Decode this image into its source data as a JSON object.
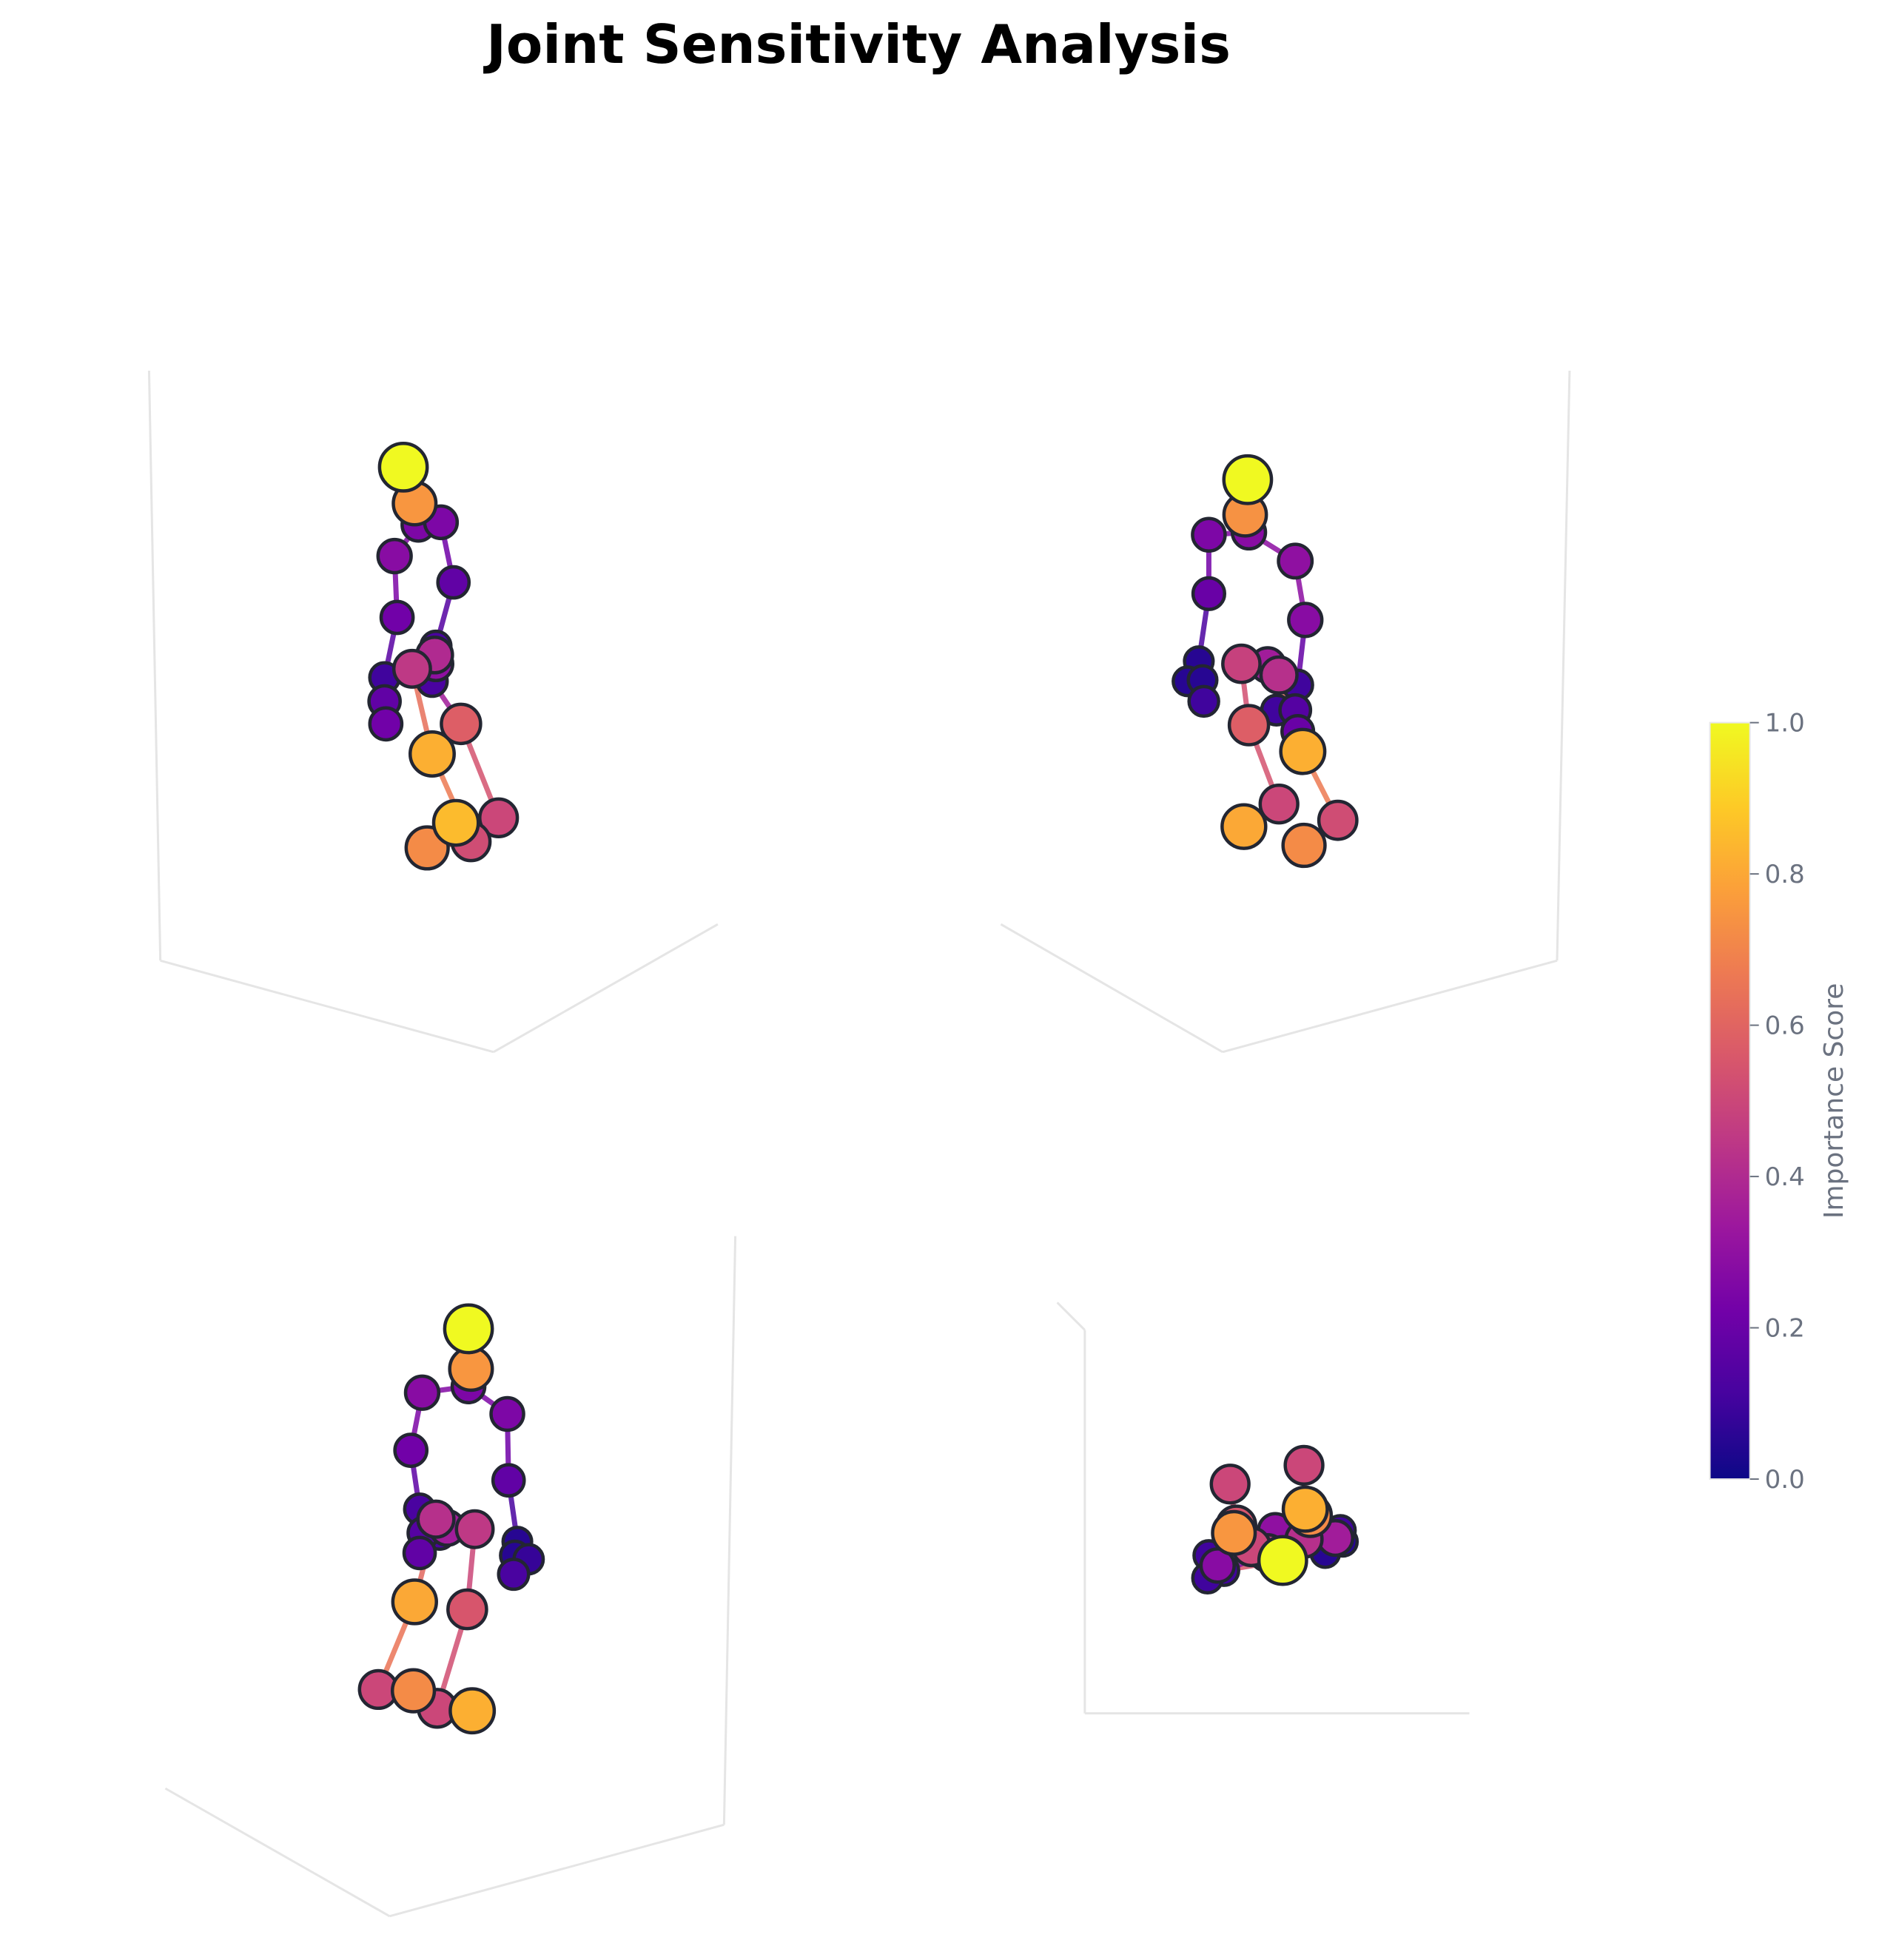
{
  "chart_data": {
    "type": "scatter",
    "title": "Joint Sensitivity Analysis",
    "description_of_encoding": "",
    "colorscale": [
      "#0d0887",
      "#46039f",
      "#7201a8",
      "#9c179e",
      "#bd3786",
      "#d8576b",
      "#ed7953",
      "#fb9f3a",
      "#fdca26",
      "#f0f921"
    ],
    "colorbar": {
      "label": "Importance Score",
      "range": [
        0.0,
        1.0
      ],
      "ticks": [
        "0.0",
        "0.2",
        "0.4",
        "0.6",
        "0.8",
        "1.0"
      ]
    },
    "panels": [
      {
        "name": "",
        "joints": [
          {
            "u": 322,
            "v": 373,
            "score": 1.0
          },
          {
            "u": 331,
            "v": 402,
            "score": 0.75
          },
          {
            "u": 334,
            "v": 419,
            "score": 0.25
          },
          {
            "u": 352,
            "v": 417,
            "score": 0.25
          },
          {
            "u": 315,
            "v": 444,
            "score": 0.28
          },
          {
            "u": 362,
            "v": 465,
            "score": 0.18
          },
          {
            "u": 317,
            "v": 493,
            "score": 0.22
          },
          {
            "u": 348,
            "v": 516,
            "score": 0.12
          },
          {
            "u": 347,
            "v": 523,
            "score": 0.4
          },
          {
            "u": 348,
            "v": 530,
            "score": 0.3
          },
          {
            "u": 329,
            "v": 534,
            "score": 0.45
          },
          {
            "u": 345,
            "v": 544,
            "score": 0.12
          },
          {
            "u": 307,
            "v": 541,
            "score": 0.1
          },
          {
            "u": 307,
            "v": 560,
            "score": 0.18
          },
          {
            "u": 308,
            "v": 578,
            "score": 0.22
          },
          {
            "u": 368,
            "v": 578,
            "score": 0.58
          },
          {
            "u": 345,
            "v": 602,
            "score": 0.82
          },
          {
            "u": 398,
            "v": 653,
            "score": 0.5
          },
          {
            "u": 364,
            "v": 657,
            "score": 0.85
          },
          {
            "u": 376,
            "v": 672,
            "score": 0.52
          },
          {
            "u": 341,
            "v": 677,
            "score": 0.72
          }
        ]
      },
      {
        "name": "",
        "joints": [
          {
            "u": 996,
            "v": 383,
            "score": 1.0
          },
          {
            "u": 994,
            "v": 411,
            "score": 0.74
          },
          {
            "u": 997,
            "v": 425,
            "score": 0.28
          },
          {
            "u": 965,
            "v": 427,
            "score": 0.25
          },
          {
            "u": 1034,
            "v": 448,
            "score": 0.3
          },
          {
            "u": 965,
            "v": 474,
            "score": 0.2
          },
          {
            "u": 1042,
            "v": 495,
            "score": 0.28
          },
          {
            "u": 991,
            "v": 530,
            "score": 0.48
          },
          {
            "u": 1012,
            "v": 531,
            "score": 0.35
          },
          {
            "u": 1021,
            "v": 539,
            "score": 0.42
          },
          {
            "u": 957,
            "v": 528,
            "score": 0.05
          },
          {
            "u": 948,
            "v": 544,
            "score": 0.05
          },
          {
            "u": 960,
            "v": 543,
            "score": 0.05
          },
          {
            "u": 961,
            "v": 560,
            "score": 0.1
          },
          {
            "u": 1036,
            "v": 547,
            "score": 0.1
          },
          {
            "u": 1019,
            "v": 567,
            "score": 0.1
          },
          {
            "u": 1034,
            "v": 567,
            "score": 0.15
          },
          {
            "u": 997,
            "v": 579,
            "score": 0.58
          },
          {
            "u": 1036,
            "v": 584,
            "score": 0.2
          },
          {
            "u": 1040,
            "v": 600,
            "score": 0.82
          },
          {
            "u": 1021,
            "v": 642,
            "score": 0.5
          },
          {
            "u": 1068,
            "v": 655,
            "score": 0.52
          },
          {
            "u": 993,
            "v": 660,
            "score": 0.8
          },
          {
            "u": 1041,
            "v": 675,
            "score": 0.72
          }
        ]
      },
      {
        "name": "",
        "joints": [
          {
            "u": 374,
            "v": 1061,
            "score": 1.0
          },
          {
            "u": 376,
            "v": 1093,
            "score": 0.75
          },
          {
            "u": 374,
            "v": 1107,
            "score": 0.25
          },
          {
            "u": 337,
            "v": 1112,
            "score": 0.28
          },
          {
            "u": 405,
            "v": 1129,
            "score": 0.25
          },
          {
            "u": 328,
            "v": 1158,
            "score": 0.22
          },
          {
            "u": 406,
            "v": 1182,
            "score": 0.18
          },
          {
            "u": 335,
            "v": 1205,
            "score": 0.12
          },
          {
            "u": 348,
            "v": 1213,
            "score": 0.42
          },
          {
            "u": 357,
            "v": 1220,
            "score": 0.35
          },
          {
            "u": 379,
            "v": 1221,
            "score": 0.45
          },
          {
            "u": 338,
            "v": 1224,
            "score": 0.15
          },
          {
            "u": 351,
            "v": 1225,
            "score": 0.12
          },
          {
            "u": 413,
            "v": 1231,
            "score": 0.05
          },
          {
            "u": 335,
            "v": 1240,
            "score": 0.18
          },
          {
            "u": 411,
            "v": 1242,
            "score": 0.05
          },
          {
            "u": 422,
            "v": 1245,
            "score": 0.08
          },
          {
            "u": 410,
            "v": 1257,
            "score": 0.12
          },
          {
            "u": 331,
            "v": 1279,
            "score": 0.8
          },
          {
            "u": 373,
            "v": 1285,
            "score": 0.55
          },
          {
            "u": 302,
            "v": 1349,
            "score": 0.5
          },
          {
            "u": 330,
            "v": 1350,
            "score": 0.72
          },
          {
            "u": 349,
            "v": 1364,
            "score": 0.5
          },
          {
            "u": 377,
            "v": 1366,
            "score": 0.82
          }
        ]
      },
      {
        "name": "",
        "joints": [
          {
            "u": 1041,
            "v": 1170,
            "score": 0.5
          },
          {
            "u": 982,
            "v": 1185,
            "score": 0.5
          },
          {
            "u": 1042,
            "v": 1205,
            "score": 0.82
          },
          {
            "u": 1046,
            "v": 1210,
            "score": 0.72
          },
          {
            "u": 987,
            "v": 1218,
            "score": 0.55
          },
          {
            "u": 985,
            "v": 1224,
            "score": 0.75
          },
          {
            "u": 1018,
            "v": 1222,
            "score": 0.3
          },
          {
            "u": 1070,
            "v": 1222,
            "score": 0.1
          },
          {
            "u": 1066,
            "v": 1228,
            "score": 0.35
          },
          {
            "u": 1041,
            "v": 1229,
            "score": 0.42
          },
          {
            "u": 1072,
            "v": 1231,
            "score": 0.05
          },
          {
            "u": 999,
            "v": 1235,
            "score": 0.5
          },
          {
            "u": 1058,
            "v": 1240,
            "score": 0.05
          },
          {
            "u": 1012,
            "v": 1240,
            "score": 0.45
          },
          {
            "u": 965,
            "v": 1242,
            "score": 0.1
          },
          {
            "u": 972,
            "v": 1250,
            "score": 0.28
          },
          {
            "u": 977,
            "v": 1254,
            "score": 0.1
          },
          {
            "u": 964,
            "v": 1260,
            "score": 0.1
          },
          {
            "u": 1024,
            "v": 1246,
            "score": 1.0
          }
        ]
      }
    ]
  }
}
